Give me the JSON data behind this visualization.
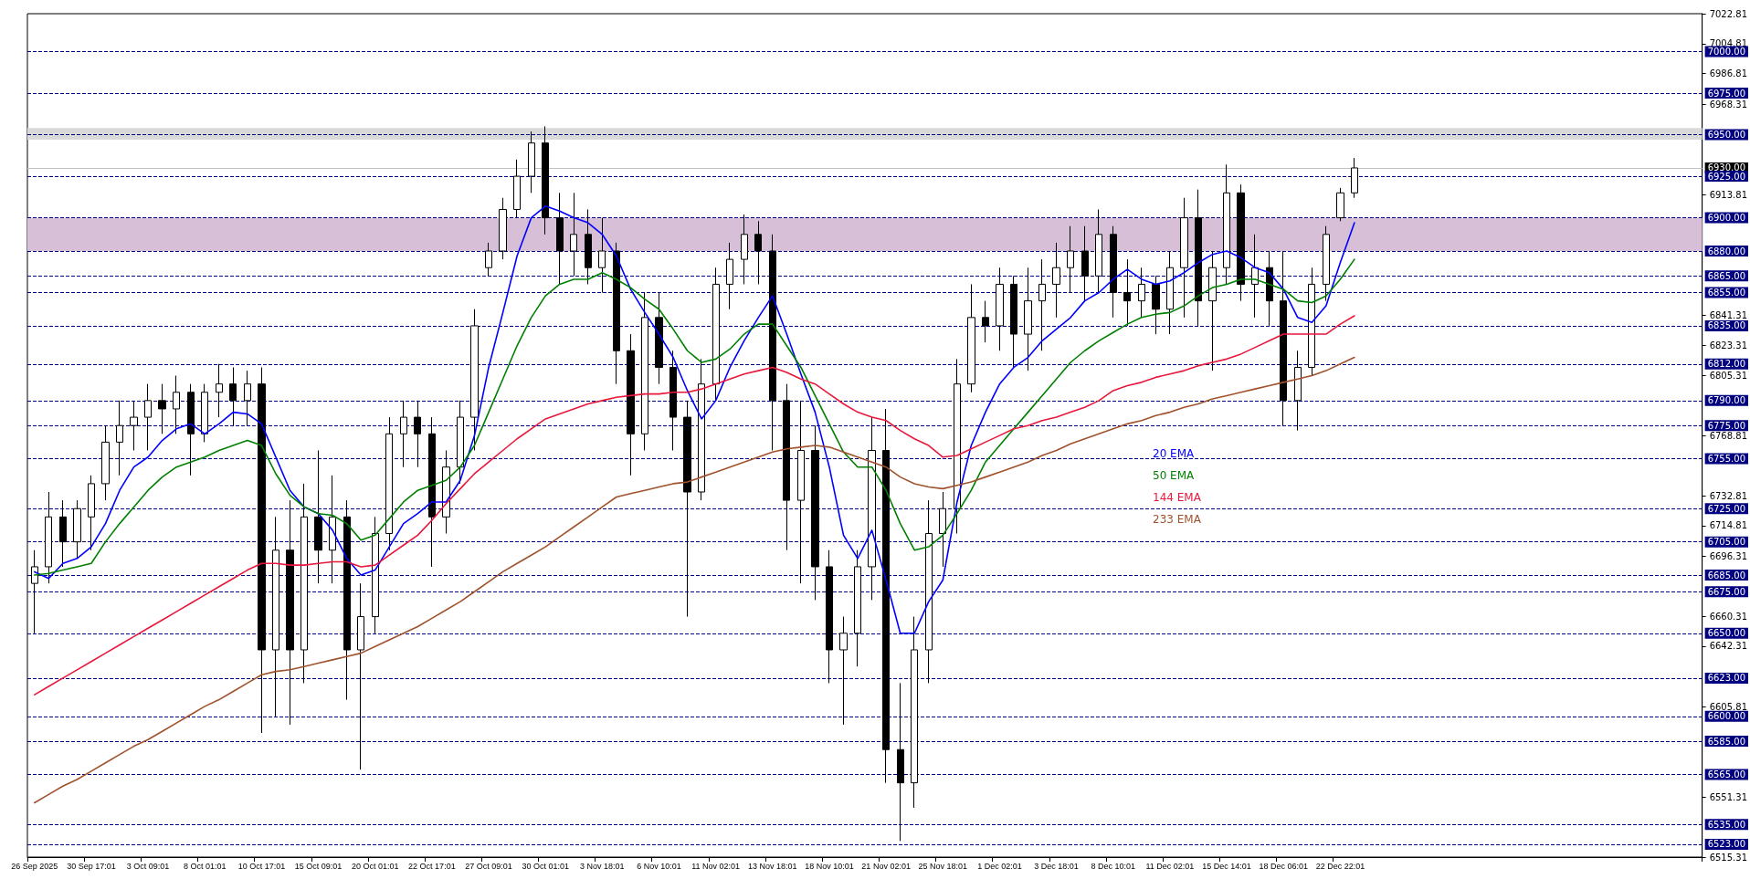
{
  "chart_data": {
    "type": "candlestick",
    "color": "#000000",
    "categories": [
      "26 Sep 2025",
      null,
      null,
      null,
      "30 Sep 17:01",
      null,
      null,
      null,
      "3 Oct 09:01",
      null,
      null,
      null,
      "8 Oct 01:01",
      null,
      null,
      null,
      "10 Oct 17:01",
      null,
      null,
      null,
      "15 Oct 09:01",
      null,
      null,
      null,
      "20 Oct 01:01",
      null,
      null,
      null,
      "22 Oct 17:01",
      null,
      null,
      null,
      "27 Oct 09:01",
      null,
      null,
      null,
      "30 Oct 01:01",
      null,
      null,
      null,
      "3 Nov 18:01",
      null,
      null,
      null,
      "6 Nov 10:01",
      null,
      null,
      null,
      "11 Nov 02:01",
      null,
      null,
      null,
      "13 Nov 18:01",
      null,
      null,
      null,
      "18 Nov 10:01",
      null,
      null,
      null,
      "21 Nov 02:01",
      null,
      null,
      null,
      "25 Nov 18:01",
      null,
      null,
      null,
      "1 Dec 02:01",
      null,
      null,
      null,
      "3 Dec 18:01",
      null,
      null,
      null,
      "8 Dec 10:01",
      null,
      null,
      null,
      "11 Dec 02:01",
      null,
      null,
      null,
      "15 Dec 14:01",
      null,
      null,
      null,
      "18 Dec 06:01",
      null,
      null,
      null,
      "22 Dec 22:01",
      null,
      null,
      null,
      null,
      null,
      null,
      null,
      null,
      null,
      null,
      null,
      null,
      null,
      null,
      null,
      null,
      null,
      null,
      null,
      null,
      null,
      null,
      null,
      null,
      null
    ],
    "ohlc": [
      [
        6680,
        6700,
        6650,
        6690
      ],
      [
        6690,
        6735,
        6680,
        6720
      ],
      [
        6720,
        6730,
        6690,
        6705
      ],
      [
        6705,
        6730,
        6695,
        6725
      ],
      [
        6720,
        6745,
        6700,
        6740
      ],
      [
        6740,
        6775,
        6730,
        6765
      ],
      [
        6765,
        6790,
        6745,
        6775
      ],
      [
        6775,
        6790,
        6760,
        6780
      ],
      [
        6780,
        6800,
        6760,
        6790
      ],
      [
        6790,
        6800,
        6770,
        6785
      ],
      [
        6785,
        6805,
        6770,
        6795
      ],
      [
        6795,
        6800,
        6745,
        6770
      ],
      [
        6770,
        6800,
        6765,
        6795
      ],
      [
        6795,
        6812,
        6780,
        6800
      ],
      [
        6800,
        6810,
        6775,
        6790
      ],
      [
        6790,
        6808,
        6775,
        6800
      ],
      [
        6800,
        6810,
        6590,
        6640
      ],
      [
        6640,
        6720,
        6600,
        6700
      ],
      [
        6700,
        6730,
        6595,
        6640
      ],
      [
        6640,
        6740,
        6620,
        6720
      ],
      [
        6720,
        6760,
        6680,
        6700
      ],
      [
        6700,
        6745,
        6680,
        6720
      ],
      [
        6720,
        6730,
        6610,
        6640
      ],
      [
        6640,
        6680,
        6568,
        6660
      ],
      [
        6660,
        6720,
        6650,
        6710
      ],
      [
        6710,
        6780,
        6700,
        6770
      ],
      [
        6770,
        6790,
        6750,
        6780
      ],
      [
        6780,
        6790,
        6750,
        6770
      ],
      [
        6770,
        6780,
        6690,
        6720
      ],
      [
        6720,
        6760,
        6710,
        6750
      ],
      [
        6750,
        6790,
        6740,
        6780
      ],
      [
        6780,
        6845,
        6760,
        6835
      ],
      [
        6870,
        6885,
        6865,
        6880
      ],
      [
        6880,
        6912,
        6875,
        6905
      ],
      [
        6905,
        6935,
        6900,
        6925
      ],
      [
        6925,
        6952,
        6915,
        6945
      ],
      [
        6945,
        6955,
        6890,
        6900
      ],
      [
        6900,
        6915,
        6860,
        6880
      ],
      [
        6880,
        6915,
        6865,
        6890
      ],
      [
        6890,
        6905,
        6860,
        6870
      ],
      [
        6870,
        6900,
        6855,
        6880
      ],
      [
        6880,
        6885,
        6800,
        6820
      ],
      [
        6820,
        6830,
        6745,
        6770
      ],
      [
        6770,
        6855,
        6760,
        6840
      ],
      [
        6840,
        6855,
        6800,
        6810
      ],
      [
        6810,
        6820,
        6760,
        6780
      ],
      [
        6780,
        6790,
        6660,
        6735
      ],
      [
        6735,
        6815,
        6730,
        6800
      ],
      [
        6800,
        6870,
        6790,
        6860
      ],
      [
        6860,
        6885,
        6845,
        6875
      ],
      [
        6875,
        6902,
        6860,
        6890
      ],
      [
        6890,
        6898,
        6860,
        6880
      ],
      [
        6880,
        6890,
        6760,
        6790
      ],
      [
        6790,
        6800,
        6700,
        6730
      ],
      [
        6730,
        6790,
        6680,
        6760
      ],
      [
        6760,
        6775,
        6670,
        6690
      ],
      [
        6690,
        6700,
        6620,
        6640
      ],
      [
        6640,
        6660,
        6595,
        6650
      ],
      [
        6650,
        6700,
        6630,
        6690
      ],
      [
        6690,
        6780,
        6670,
        6760
      ],
      [
        6760,
        6785,
        6560,
        6580
      ],
      [
        6580,
        6620,
        6525,
        6560
      ],
      [
        6560,
        6660,
        6545,
        6640
      ],
      [
        6640,
        6730,
        6620,
        6710
      ],
      [
        6710,
        6735,
        6690,
        6725
      ],
      [
        6725,
        6815,
        6710,
        6800
      ],
      [
        6800,
        6860,
        6795,
        6840
      ],
      [
        6840,
        6850,
        6825,
        6835
      ],
      [
        6835,
        6870,
        6820,
        6860
      ],
      [
        6860,
        6865,
        6810,
        6830
      ],
      [
        6830,
        6870,
        6808,
        6850
      ],
      [
        6850,
        6875,
        6820,
        6860
      ],
      [
        6860,
        6885,
        6840,
        6870
      ],
      [
        6870,
        6895,
        6855,
        6880
      ],
      [
        6880,
        6895,
        6850,
        6865
      ],
      [
        6865,
        6905,
        6855,
        6890
      ],
      [
        6890,
        6895,
        6840,
        6855
      ],
      [
        6855,
        6875,
        6835,
        6850
      ],
      [
        6850,
        6870,
        6840,
        6860
      ],
      [
        6860,
        6865,
        6830,
        6845
      ],
      [
        6845,
        6880,
        6830,
        6870
      ],
      [
        6870,
        6912,
        6840,
        6900
      ],
      [
        6900,
        6917,
        6835,
        6850
      ],
      [
        6850,
        6880,
        6808,
        6870
      ],
      [
        6870,
        6932,
        6860,
        6915
      ],
      [
        6915,
        6920,
        6850,
        6860
      ],
      [
        6860,
        6890,
        6840,
        6870
      ],
      [
        6870,
        6880,
        6835,
        6850
      ],
      [
        6850,
        6880,
        6775,
        6790
      ],
      [
        6790,
        6820,
        6772,
        6810
      ],
      [
        6810,
        6870,
        6805,
        6860
      ],
      [
        6860,
        6895,
        6850,
        6890
      ],
      [
        6900,
        6918,
        6898,
        6915
      ],
      [
        6915,
        6936,
        6912,
        6930
      ],
      null,
      null,
      null,
      null,
      null,
      null,
      null,
      null,
      null,
      null,
      null,
      null,
      null,
      null,
      null,
      null,
      null,
      null,
      null,
      null,
      null,
      null,
      null,
      null
    ],
    "series": [
      {
        "type": "line",
        "name": "20 EMA",
        "color": "#0000ff",
        "values": [
          6687,
          6683,
          6692,
          6695,
          6702,
          6716,
          6736,
          6750,
          6756,
          6766,
          6773,
          6776,
          6770,
          6776,
          6783,
          6782,
          6776,
          6756,
          6736,
          6726,
          6722,
          6712,
          6695,
          6685,
          6688,
          6702,
          6716,
          6722,
          6729,
          6729,
          6742,
          6769,
          6810,
          6843,
          6877,
          6900,
          6907,
          6904,
          6900,
          6897,
          6890,
          6877,
          6857,
          6843,
          6830,
          6816,
          6796,
          6779,
          6790,
          6810,
          6826,
          6840,
          6853,
          6830,
          6806,
          6783,
          6750,
          6709,
          6695,
          6712,
          6682,
          6650,
          6650,
          6669,
          6682,
          6729,
          6763,
          6783,
          6800,
          6810,
          6816,
          6826,
          6833,
          6840,
          6850,
          6855,
          6863,
          6869,
          6863,
          6860,
          6862,
          6867,
          6873,
          6878,
          6880,
          6876,
          6870,
          6867,
          6857,
          6840,
          6837,
          6847,
          6873,
          6897,
          null,
          null,
          null,
          null,
          null,
          null,
          null,
          null,
          null,
          null,
          null,
          null,
          null,
          null,
          null,
          null,
          null,
          null,
          null,
          null,
          null,
          null,
          null,
          null
        ]
      },
      {
        "type": "line",
        "name": "50 EMA",
        "color": "#008000",
        "values": [
          6685,
          6686,
          6688,
          6690,
          6692,
          6705,
          6716,
          6726,
          6736,
          6744,
          6750,
          6753,
          6756,
          6760,
          6763,
          6766,
          6763,
          6746,
          6733,
          6726,
          6722,
          6721,
          6716,
          6706,
          6709,
          6719,
          6729,
          6736,
          6739,
          6742,
          6750,
          6763,
          6783,
          6803,
          6823,
          6840,
          6853,
          6860,
          6863,
          6863,
          6867,
          6863,
          6858,
          6851,
          6845,
          6833,
          6820,
          6813,
          6815,
          6821,
          6830,
          6836,
          6836,
          6823,
          6810,
          6793,
          6776,
          6759,
          6750,
          6750,
          6736,
          6716,
          6700,
          6702,
          6709,
          6722,
          6736,
          6753,
          6763,
          6773,
          6783,
          6793,
          6803,
          6813,
          6820,
          6826,
          6831,
          6836,
          6840,
          6842,
          6843,
          6847,
          6853,
          6858,
          6860,
          6863,
          6863,
          6860,
          6857,
          6850,
          6849,
          6853,
          6863,
          6875,
          null,
          null,
          null,
          null,
          null,
          null,
          null,
          null,
          null,
          null,
          null,
          null,
          null,
          null,
          null,
          null,
          null,
          null,
          null,
          null,
          null,
          null,
          null,
          null
        ]
      },
      {
        "type": "line",
        "name": "144 EMA",
        "color": "#e8173c",
        "values": [
          6613,
          6618,
          6623,
          6628,
          6633,
          6638,
          6643,
          6648,
          6653,
          6658,
          6663,
          6668,
          6673,
          6678,
          6683,
          6688,
          6692,
          6692,
          6691,
          6691,
          6692,
          6693,
          6693,
          6690,
          6691,
          6697,
          6703,
          6709,
          6718,
          6728,
          6737,
          6746,
          6753,
          6760,
          6767,
          6773,
          6779,
          6782,
          6785,
          6788,
          6790,
          6792,
          6793,
          6794,
          6794,
          6795,
          6795,
          6797,
          6800,
          6803,
          6806,
          6808,
          6810,
          6807,
          6803,
          6800,
          6794,
          6788,
          6783,
          6780,
          6778,
          6772,
          6767,
          6763,
          6756,
          6757,
          6761,
          6765,
          6769,
          6773,
          6775,
          6778,
          6780,
          6783,
          6786,
          6790,
          6796,
          6799,
          6801,
          6804,
          6806,
          6808,
          6811,
          6813,
          6815,
          6818,
          6822,
          6826,
          6830,
          6830,
          6830,
          6830,
          6836,
          6841,
          null,
          null,
          null,
          null,
          null,
          null,
          null,
          null,
          null,
          null,
          null,
          null,
          null,
          null,
          null,
          null,
          null,
          null,
          null,
          null,
          null,
          null,
          null,
          null
        ]
      },
      {
        "type": "line",
        "name": "233 EMA",
        "color": "#a0522d",
        "values": [
          6548,
          6553,
          6558,
          6562,
          6567,
          6572,
          6577,
          6582,
          6586,
          6591,
          6596,
          6601,
          6606,
          6610,
          6615,
          6620,
          6625,
          6627,
          6628,
          6630,
          6632,
          6634,
          6636,
          6638,
          6642,
          6646,
          6650,
          6654,
          6659,
          6664,
          6669,
          6675,
          6681,
          6687,
          6692,
          6697,
          6702,
          6708,
          6714,
          6720,
          6726,
          6732,
          6734,
          6736,
          6738,
          6740,
          6741,
          6744,
          6747,
          6750,
          6753,
          6756,
          6759,
          6761,
          6762,
          6763,
          6762,
          6759,
          6756,
          6753,
          6750,
          6744,
          6740,
          6738,
          6737,
          6739,
          6741,
          6744,
          6747,
          6750,
          6753,
          6757,
          6760,
          6764,
          6767,
          6770,
          6773,
          6776,
          6778,
          6781,
          6783,
          6786,
          6788,
          6791,
          6793,
          6795,
          6797,
          6799,
          6801,
          6803,
          6805,
          6808,
          6812,
          6816,
          null,
          null,
          null,
          null,
          null,
          null,
          null,
          null,
          null,
          null,
          null,
          null,
          null,
          null,
          null,
          null,
          null,
          null,
          null,
          null,
          null,
          null,
          null,
          null
        ]
      }
    ],
    "ylim": [
      6515.31,
      7022.81
    ],
    "yticks": [
      7022.81,
      7004.81,
      6986.81,
      6968.31,
      6913.81,
      6841.31,
      6823.31,
      6805.31,
      6768.81,
      6732.81,
      6714.81,
      6696.31,
      6660.31,
      6642.31,
      6605.81,
      6551.31,
      6515.31
    ],
    "ref_lines": [
      {
        "axis": "y",
        "value": 7000,
        "label": "7000.00",
        "color": "#000080",
        "line_style": "dashed"
      },
      {
        "axis": "y",
        "value": 6975,
        "label": "6975.00",
        "color": "#000080",
        "line_style": "dashed"
      },
      {
        "axis": "y",
        "value": 6950,
        "label": "6950.00",
        "color": "#000080",
        "line_style": "dashed"
      },
      {
        "axis": "y",
        "value": 6930,
        "label": "6930.00",
        "color": "#c0c0c0",
        "line_style": "solid"
      },
      {
        "axis": "y",
        "value": 6925,
        "label": "6925.00",
        "color": "#000080",
        "line_style": "dashed"
      },
      {
        "axis": "y",
        "value": 6900,
        "label": "6900.00",
        "color": "#000080",
        "line_style": "dashed"
      },
      {
        "axis": "y",
        "value": 6880,
        "label": "6880.00",
        "color": "#000080",
        "line_style": "dashed"
      },
      {
        "axis": "y",
        "value": 6865,
        "label": "6865.00",
        "color": "#000080",
        "line_style": "dashed"
      },
      {
        "axis": "y",
        "value": 6855,
        "label": "6855.00",
        "color": "#000080",
        "line_style": "dashed"
      },
      {
        "axis": "y",
        "value": 6835,
        "label": "6835.00",
        "color": "#000080",
        "line_style": "dashed"
      },
      {
        "axis": "y",
        "value": 6812,
        "label": "6812.00",
        "color": "#000080",
        "line_style": "dashed"
      },
      {
        "axis": "y",
        "value": 6790,
        "label": "6790.00",
        "color": "#000080",
        "line_style": "dashed"
      },
      {
        "axis": "y",
        "value": 6775,
        "label": "6775.00",
        "color": "#000080",
        "line_style": "dashed"
      },
      {
        "axis": "y",
        "value": 6755,
        "label": "6755.00",
        "color": "#000080",
        "line_style": "dashed"
      },
      {
        "axis": "y",
        "value": 6725,
        "label": "6725.00",
        "color": "#000080",
        "line_style": "dashed"
      },
      {
        "axis": "y",
        "value": 6705,
        "label": "6705.00",
        "color": "#000080",
        "line_style": "dashed"
      },
      {
        "axis": "y",
        "value": 6685,
        "label": "6685.00",
        "color": "#000080",
        "line_style": "dashed"
      },
      {
        "axis": "y",
        "value": 6675,
        "label": "6675.00",
        "color": "#000080",
        "line_style": "dashed"
      },
      {
        "axis": "y",
        "value": 6650,
        "label": "6650.00",
        "color": "#000080",
        "line_style": "dashed"
      },
      {
        "axis": "y",
        "value": 6623,
        "label": "6623.00",
        "color": "#000080",
        "line_style": "dashed"
      },
      {
        "axis": "y",
        "value": 6600,
        "label": "6600.00",
        "color": "#000080",
        "line_style": "dashed"
      },
      {
        "axis": "y",
        "value": 6585,
        "label": "6585.00",
        "color": "#000080",
        "line_style": "dashed"
      },
      {
        "axis": "y",
        "value": 6565,
        "label": "6565.00",
        "color": "#000080",
        "line_style": "dashed"
      },
      {
        "axis": "y",
        "value": 6535,
        "label": "6535.00",
        "color": "#000080",
        "line_style": "dashed"
      },
      {
        "axis": "y",
        "value": 6523,
        "label": "6523.00",
        "color": "#000080",
        "line_style": "dashed"
      }
    ],
    "bands": [
      {
        "axis": "y",
        "from": 6947,
        "to": 6954,
        "color": "#d9d9d9"
      },
      {
        "axis": "y",
        "from": 6880,
        "to": 6900,
        "color": "#d8bfd8"
      }
    ],
    "legend": "right",
    "marker": "none",
    "line_style": "solid",
    "grid": false
  }
}
